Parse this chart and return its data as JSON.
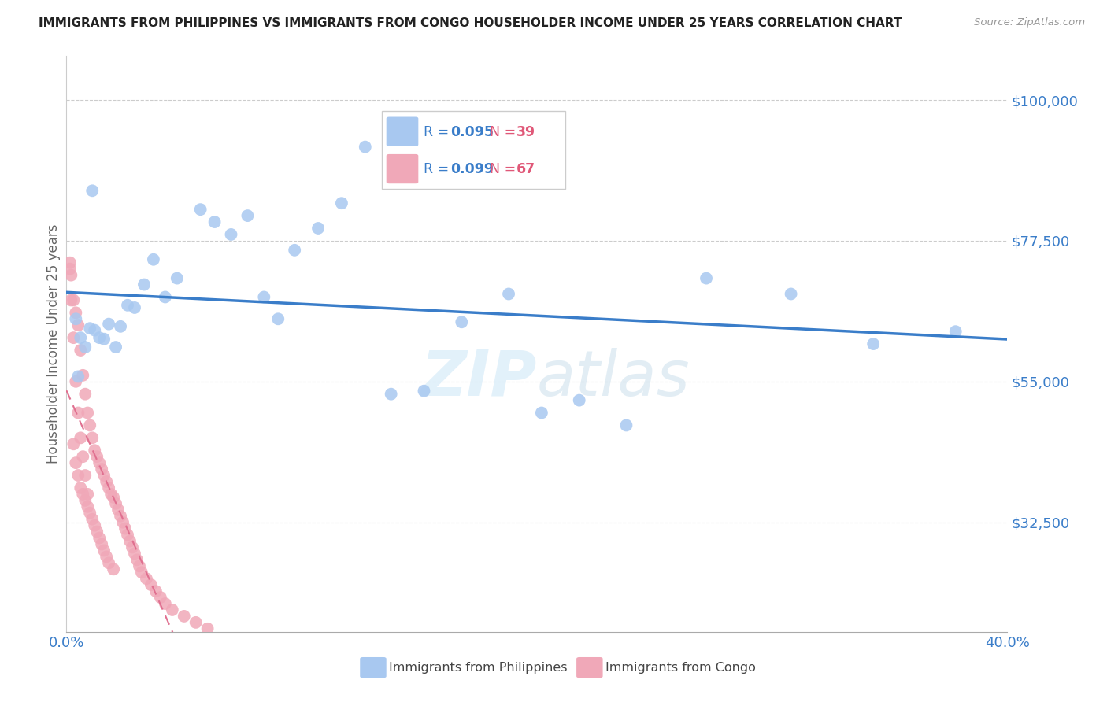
{
  "title": "IMMIGRANTS FROM PHILIPPINES VS IMMIGRANTS FROM CONGO HOUSEHOLDER INCOME UNDER 25 YEARS CORRELATION CHART",
  "source": "Source: ZipAtlas.com",
  "ylabel": "Householder Income Under 25 years",
  "xlim": [
    0.0,
    0.4
  ],
  "ylim": [
    15000,
    107000
  ],
  "yticks": [
    32500,
    55000,
    77500,
    100000
  ],
  "ytick_labels": [
    "$32,500",
    "$55,000",
    "$77,500",
    "$100,000"
  ],
  "xticks": [
    0.0,
    0.08,
    0.16,
    0.24,
    0.32,
    0.4
  ],
  "xtick_labels": [
    "0.0%",
    "",
    "",
    "",
    "",
    "40.0%"
  ],
  "watermark": "ZIPatlas",
  "philippines_R": 0.095,
  "philippines_N": 39,
  "congo_R": 0.099,
  "congo_N": 67,
  "philippines_color": "#a8c8f0",
  "congo_color": "#f0a8b8",
  "philippines_line_color": "#3a7dc9",
  "congo_line_color": "#e07090",
  "philippines_x": [
    0.004,
    0.006,
    0.008,
    0.01,
    0.012,
    0.014,
    0.016,
    0.018,
    0.02,
    0.022,
    0.025,
    0.028,
    0.032,
    0.036,
    0.04,
    0.045,
    0.055,
    0.06,
    0.068,
    0.075,
    0.082,
    0.088,
    0.095,
    0.105,
    0.115,
    0.125,
    0.135,
    0.15,
    0.165,
    0.185,
    0.2,
    0.215,
    0.235,
    0.27,
    0.305,
    0.34,
    0.375,
    0.005,
    0.01
  ],
  "philippines_y": [
    65000,
    62000,
    60000,
    63500,
    63000,
    62000,
    61500,
    64000,
    60000,
    63500,
    67000,
    66500,
    70000,
    74000,
    68000,
    71000,
    82000,
    80000,
    78000,
    81000,
    68000,
    64500,
    75500,
    79000,
    83000,
    92000,
    52500,
    53000,
    64000,
    68500,
    49500,
    51500,
    47500,
    71000,
    68500,
    60500,
    62500,
    55500,
    85000
  ],
  "congo_x": [
    0.001,
    0.002,
    0.003,
    0.003,
    0.004,
    0.004,
    0.005,
    0.005,
    0.006,
    0.006,
    0.007,
    0.007,
    0.008,
    0.008,
    0.009,
    0.009,
    0.01,
    0.01,
    0.011,
    0.011,
    0.012,
    0.012,
    0.013,
    0.013,
    0.014,
    0.014,
    0.015,
    0.015,
    0.016,
    0.016,
    0.017,
    0.017,
    0.018,
    0.018,
    0.019,
    0.02,
    0.02,
    0.021,
    0.022,
    0.023,
    0.024,
    0.025,
    0.026,
    0.027,
    0.028,
    0.029,
    0.03,
    0.031,
    0.032,
    0.034,
    0.036,
    0.038,
    0.04,
    0.042,
    0.045,
    0.05,
    0.055,
    0.06,
    0.001,
    0.002,
    0.003,
    0.004,
    0.005,
    0.006,
    0.007,
    0.008,
    0.009
  ],
  "congo_y": [
    73000,
    72000,
    68000,
    62000,
    65000,
    58000,
    63000,
    55000,
    58000,
    50000,
    55000,
    48000,
    53000,
    45000,
    50000,
    44000,
    48000,
    42000,
    46000,
    40000,
    44000,
    38000,
    43000,
    37000,
    42000,
    36000,
    41000,
    35000,
    40000,
    34000,
    39000,
    33000,
    38000,
    32000,
    37000,
    36000,
    30000,
    35000,
    34000,
    33000,
    32000,
    31000,
    30000,
    29000,
    28000,
    27000,
    26000,
    25000,
    24000,
    23000,
    22000,
    21000,
    20000,
    19000,
    18000,
    17000,
    16000,
    15000,
    75000,
    70000,
    66000,
    61000,
    56000,
    52000,
    48000,
    44000,
    40000
  ]
}
